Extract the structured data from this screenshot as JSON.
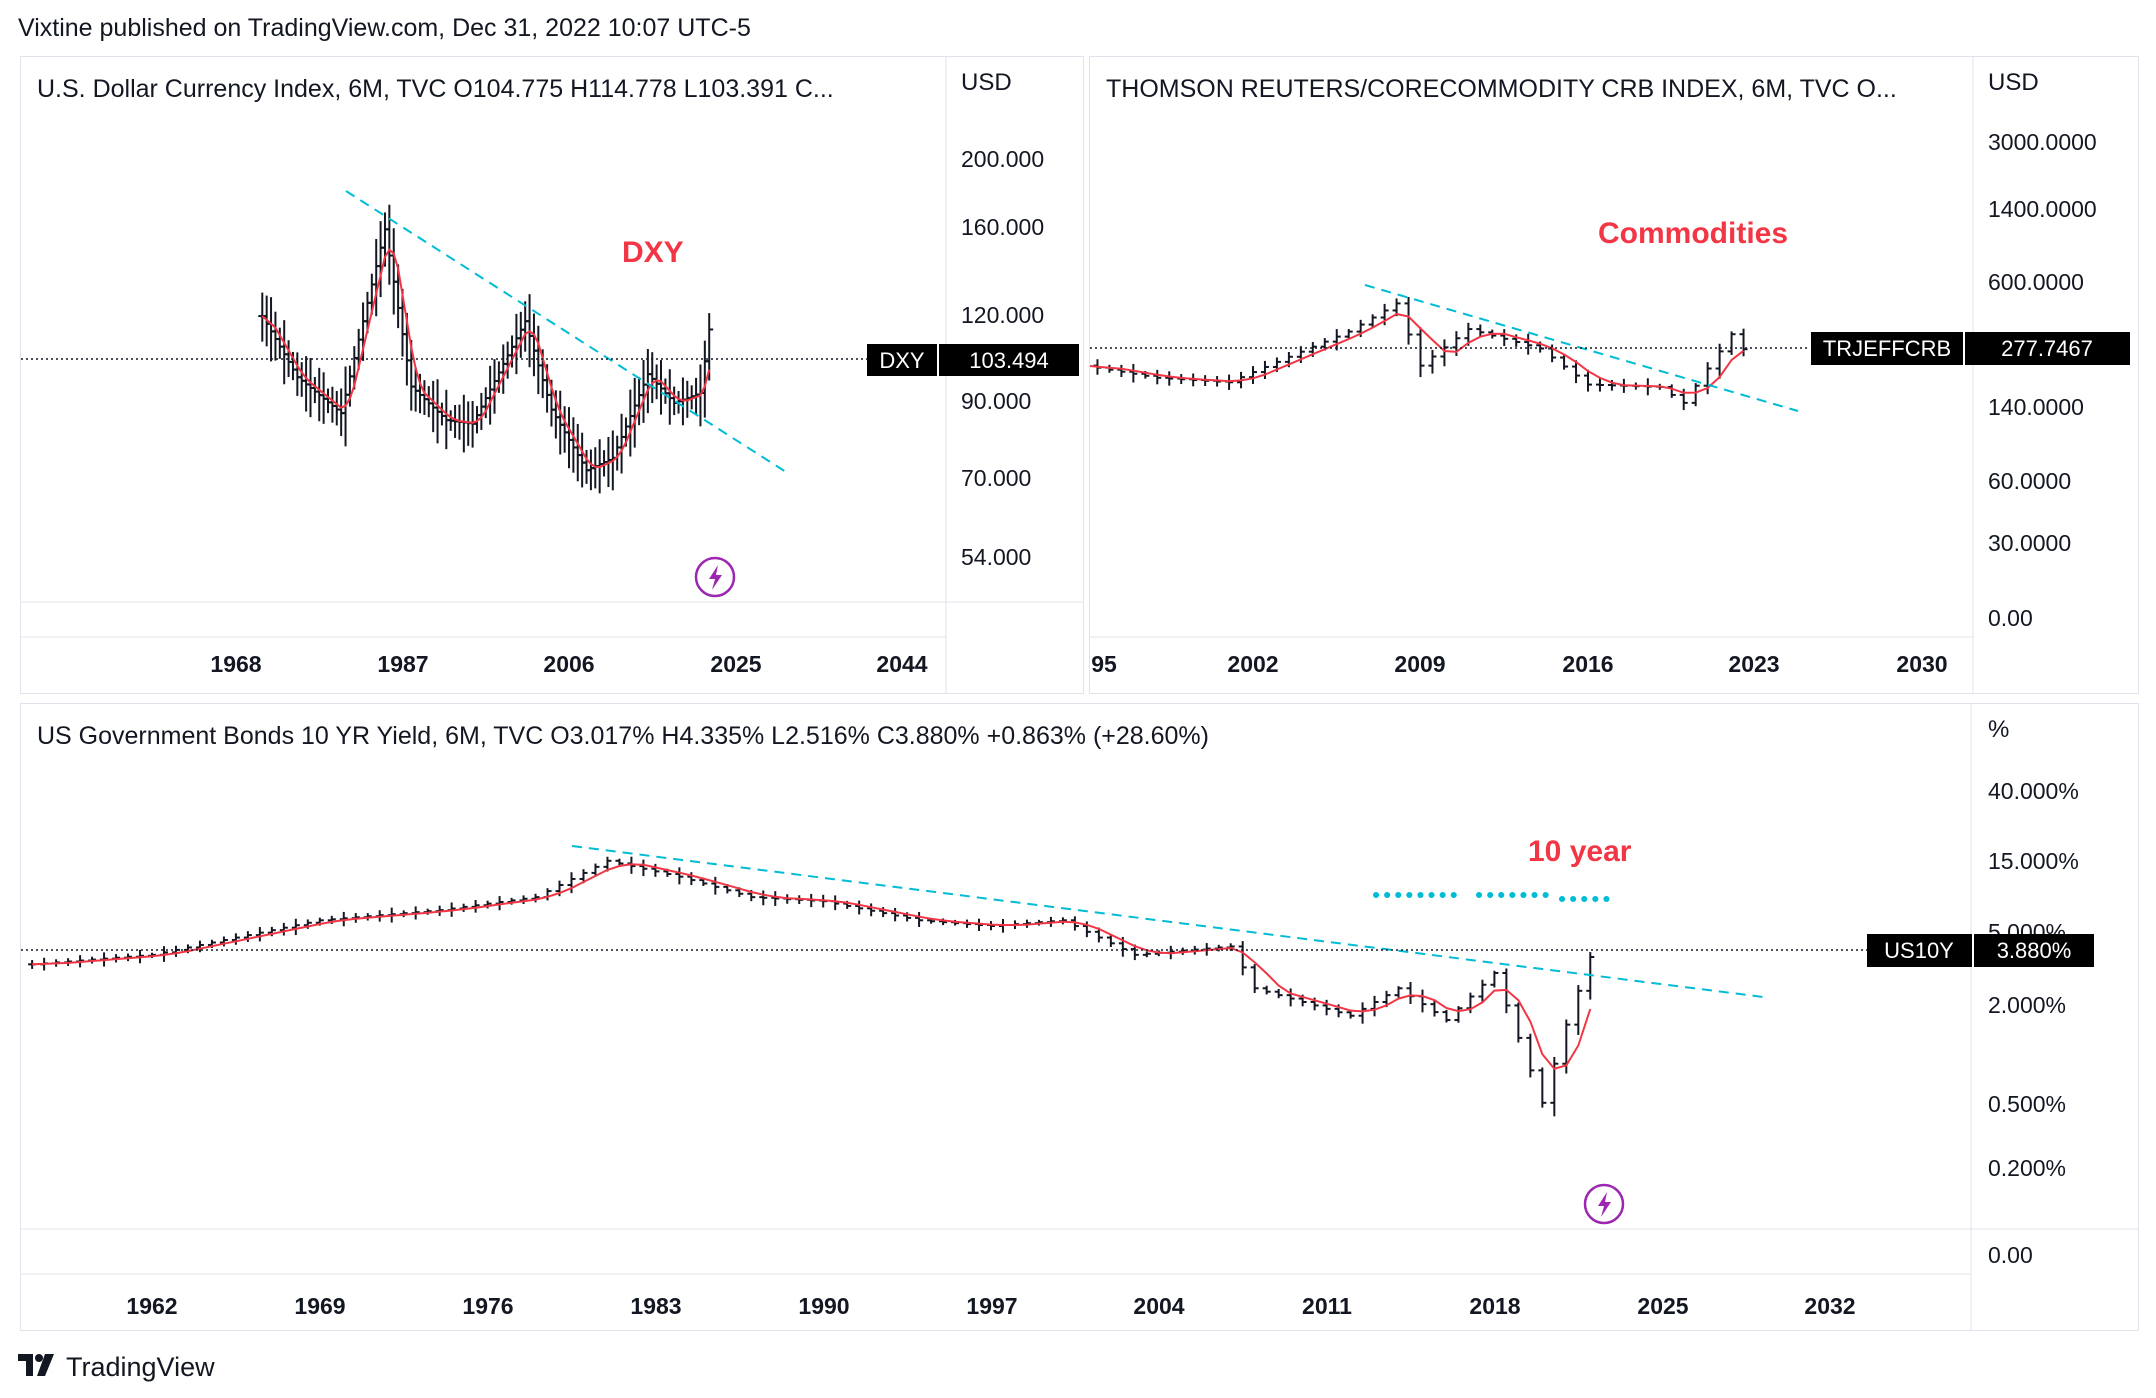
{
  "header": {
    "text": "Vixtine published on TradingView.com, Dec 31, 2022 10:07 UTC-5"
  },
  "footer": {
    "logo_icon": "tradingview-logo-icon",
    "brand": "TradingView"
  },
  "colors": {
    "ma_line": "#f23645",
    "trendline": "#00bcd4",
    "bars": "#131722",
    "annotation": "#f23645",
    "bolt": "#9c27b0"
  },
  "panels": {
    "dxy": {
      "legend": "U.S. Dollar Currency Index, 6M, TVC  O104.775  H114.778  L103.391  C...",
      "unit": "USD",
      "annotation": "DXY",
      "price_tag": {
        "symbol": "DXY",
        "value": "103.494"
      }
    },
    "crb": {
      "legend": "THOMSON REUTERS/CORECOMMODITY CRB INDEX, 6M, TVC  O...",
      "unit": "USD",
      "annotation": "Commodities",
      "price_tag": {
        "symbol": "TRJEFFCRB",
        "value": "277.7467"
      }
    },
    "us10y": {
      "legend": "US Government Bonds 10 YR Yield, 6M, TVC  O3.017%  H4.335%  L2.516%  C3.880%  +0.863% (+28.60%)",
      "unit": "%",
      "annotation": "10 year",
      "price_tag": {
        "symbol": "US10Y",
        "value": "3.880%"
      }
    }
  },
  "chart_data": [
    {
      "type": "ohlc",
      "title": "U.S. Dollar Currency Index, 6M, TVC",
      "series": [
        {
          "name": "DXY",
          "last": 103.494,
          "open": 104.775,
          "high": 114.778,
          "low": 103.391
        }
      ],
      "y_scale": "log",
      "y_ticks": [
        "200.000",
        "160.000",
        "120.000",
        "90.000",
        "70.000",
        "54.000"
      ],
      "x_ticks": [
        "1968",
        "1987",
        "2006",
        "2025",
        "2044"
      ],
      "approx_path": [
        [
          1971,
          120
        ],
        [
          1975,
          98
        ],
        [
          1980,
          87
        ],
        [
          1985,
          160
        ],
        [
          1988,
          95
        ],
        [
          1992,
          85
        ],
        [
          1995,
          84
        ],
        [
          2001,
          118
        ],
        [
          2004,
          88
        ],
        [
          2008,
          72
        ],
        [
          2011,
          75
        ],
        [
          2015,
          99
        ],
        [
          2018,
          90
        ],
        [
          2021,
          93
        ],
        [
          2022,
          114.8
        ]
      ],
      "trendline": [
        [
          1984,
          168
        ],
        [
          2028,
          70
        ]
      ],
      "annotations": [
        "DXY"
      ]
    },
    {
      "type": "ohlc",
      "title": "THOMSON REUTERS/CORECOMMODITY CRB INDEX, 6M, TVC",
      "series": [
        {
          "name": "TRJEFFCRB",
          "last": 277.7467
        }
      ],
      "y_scale": "log",
      "y_ticks": [
        "3000.0000",
        "1400.0000",
        "600.0000",
        "140.0000",
        "60.0000",
        "30.0000",
        "0.00"
      ],
      "x_ticks": [
        "95",
        "2002",
        "2009",
        "2016",
        "2023",
        "2030"
      ],
      "approx_path": [
        [
          1995,
          230
        ],
        [
          1998,
          200
        ],
        [
          2001,
          190
        ],
        [
          2004,
          270
        ],
        [
          2006,
          340
        ],
        [
          2008,
          470
        ],
        [
          2009,
          230
        ],
        [
          2011,
          350
        ],
        [
          2014,
          280
        ],
        [
          2016,
          185
        ],
        [
          2019,
          180
        ],
        [
          2020,
          150
        ],
        [
          2022,
          330
        ],
        [
          2022.5,
          277.7
        ]
      ],
      "trendline": [
        [
          2006,
          470
        ],
        [
          2024.5,
          160
        ]
      ],
      "annotations": [
        "Commodities"
      ]
    },
    {
      "type": "ohlc",
      "title": "US Government Bonds 10 YR Yield, 6M, TVC",
      "series": [
        {
          "name": "US10Y",
          "last": 3.88,
          "open": 3.017,
          "high": 4.335,
          "low": 2.516,
          "close": 3.88,
          "change": 0.863,
          "change_pct": 28.6
        }
      ],
      "y_scale": "log",
      "y_ticks": [
        "40.000%",
        "15.000%",
        "5.000%",
        "2.000%",
        "0.500%",
        "0.200%",
        "0.00"
      ],
      "x_ticks": [
        "1962",
        "1969",
        "1976",
        "1983",
        "1990",
        "1997",
        "2004",
        "2011",
        "2018",
        "2025",
        "2032"
      ],
      "approx_path": [
        [
          1957,
          3.5
        ],
        [
          1962,
          4.0
        ],
        [
          1969,
          6.5
        ],
        [
          1974,
          7.5
        ],
        [
          1978,
          9
        ],
        [
          1981,
          15
        ],
        [
          1984,
          12
        ],
        [
          1987,
          9
        ],
        [
          1990,
          8.5
        ],
        [
          1994,
          6.5
        ],
        [
          1997,
          6
        ],
        [
          2000,
          6.5
        ],
        [
          2003,
          4
        ],
        [
          2007,
          4.5
        ],
        [
          2008,
          2.5
        ],
        [
          2012,
          1.7
        ],
        [
          2014,
          2.5
        ],
        [
          2016,
          1.6
        ],
        [
          2018,
          3.1
        ],
        [
          2020,
          0.5
        ],
        [
          2021,
          1.5
        ],
        [
          2022,
          3.88
        ]
      ],
      "trendline": [
        [
          1979,
          14
        ],
        [
          2028,
          2.3
        ]
      ],
      "annotations": [
        "10 year"
      ]
    }
  ]
}
